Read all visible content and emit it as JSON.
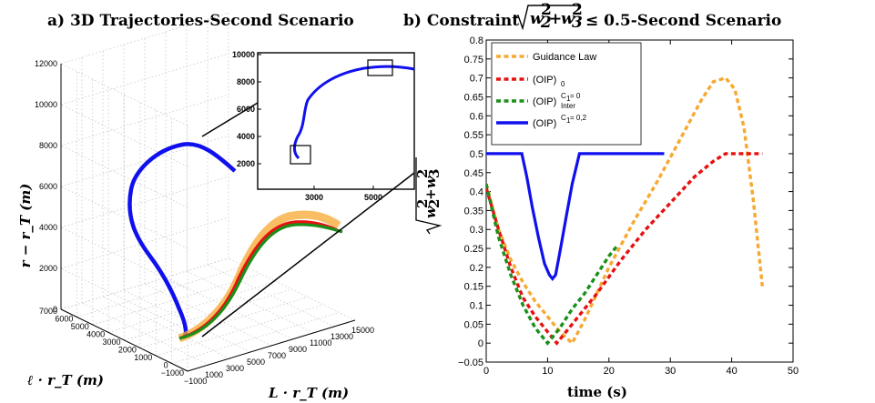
{
  "chart_data": [
    {
      "type": "line",
      "panel": "a",
      "title": "a) 3D Trajectories-Second Scenario",
      "xlabel": "L · r_T  (m)",
      "ylabel": "ℓ · r_T  (m)",
      "zlabel": "r − r_T  (m)",
      "x_ticks": [
        "−1000",
        "1000",
        "3000",
        "5000",
        "7000",
        "9000",
        "11000",
        "13000",
        "15000"
      ],
      "y_ticks": [
        "−1000",
        "0",
        "1000",
        "2000",
        "3000",
        "4000",
        "5000",
        "6000",
        "7000"
      ],
      "z_ticks": [
        "0",
        "2000",
        "4000",
        "6000",
        "8000",
        "10000",
        "12000"
      ],
      "inset": {
        "x_ticks": [
          "3000",
          "5000"
        ],
        "y_ticks": [
          "2000",
          "4000",
          "6000",
          "8000",
          "10000"
        ]
      },
      "grid": true,
      "colors": {
        "blue": "#1010ee",
        "orange": "#f7a830",
        "red": "#e81010",
        "green": "#1a8f1a"
      }
    },
    {
      "type": "line",
      "panel": "b",
      "title_left": "b) Constraint",
      "title_right": "≤ 0.5-Second Scenario",
      "xlabel": "time  (s)",
      "ylabel": "w₂² + w₃²",
      "xlim": [
        0,
        50
      ],
      "ylim": [
        -0.05,
        0.8
      ],
      "x_ticks": [
        "0",
        "10",
        "20",
        "30",
        "40",
        "50"
      ],
      "y_ticks": [
        "−0.05",
        "0",
        "0.05",
        "0.1",
        "0.15",
        "0.2",
        "0.25",
        "0.3",
        "0.35",
        "0.4",
        "0.45",
        "0.5",
        "0.55",
        "0.6",
        "0.65",
        "0.7",
        "0.75",
        "0.8"
      ],
      "legend_position": "top-left",
      "series": [
        {
          "name": "Guidance Law",
          "style": "dashed",
          "color": "#f7a830",
          "points": [
            [
              0,
              0.42
            ],
            [
              2,
              0.3
            ],
            [
              4,
              0.22
            ],
            [
              6,
              0.16
            ],
            [
              8,
              0.11
            ],
            [
              10,
              0.07
            ],
            [
              12,
              0.03
            ],
            [
              14,
              0.0
            ],
            [
              16,
              0.06
            ],
            [
              20,
              0.2
            ],
            [
              24,
              0.32
            ],
            [
              28,
              0.43
            ],
            [
              32,
              0.55
            ],
            [
              35,
              0.64
            ],
            [
              37,
              0.69
            ],
            [
              39,
              0.7
            ],
            [
              40.5,
              0.67
            ],
            [
              42,
              0.57
            ],
            [
              43.5,
              0.38
            ],
            [
              45,
              0.15
            ]
          ]
        },
        {
          "name": "(OIP)",
          "sub": "0",
          "style": "dashed",
          "color": "#e81010",
          "points": [
            [
              0,
              0.41
            ],
            [
              2,
              0.3
            ],
            [
              4,
              0.2
            ],
            [
              6,
              0.12
            ],
            [
              8,
              0.07
            ],
            [
              10,
              0.03
            ],
            [
              11.5,
              0.0
            ],
            [
              14,
              0.05
            ],
            [
              18,
              0.13
            ],
            [
              22,
              0.22
            ],
            [
              26,
              0.3
            ],
            [
              30,
              0.37
            ],
            [
              34,
              0.44
            ],
            [
              37,
              0.48
            ],
            [
              39,
              0.5
            ],
            [
              45,
              0.5
            ]
          ]
        },
        {
          "name": "(OIP)",
          "sub": "Inter",
          "sup": "C",
          "sup_sub": "1",
          "sup_rest": " = 0",
          "style": "dashed",
          "color": "#1a8f1a",
          "points": [
            [
              0,
              0.42
            ],
            [
              2,
              0.28
            ],
            [
              4,
              0.18
            ],
            [
              6,
              0.1
            ],
            [
              8,
              0.04
            ],
            [
              10,
              0.0
            ],
            [
              12,
              0.04
            ],
            [
              14,
              0.09
            ],
            [
              16,
              0.13
            ],
            [
              18,
              0.18
            ],
            [
              20,
              0.23
            ],
            [
              21.5,
              0.26
            ]
          ]
        },
        {
          "name": "(OIP)",
          "sup": "C",
          "sup_sub": "1",
          "sup_rest": " = 0,2",
          "style": "solid",
          "color": "#1010ee",
          "points": [
            [
              0,
              0.5
            ],
            [
              5.8,
              0.5
            ],
            [
              6.6,
              0.44
            ],
            [
              7.5,
              0.36
            ],
            [
              8.5,
              0.28
            ],
            [
              9.5,
              0.21
            ],
            [
              10.3,
              0.18
            ],
            [
              10.8,
              0.17
            ],
            [
              11.3,
              0.18
            ],
            [
              12,
              0.24
            ],
            [
              13,
              0.33
            ],
            [
              14,
              0.42
            ],
            [
              15.2,
              0.5
            ],
            [
              29,
              0.5
            ]
          ]
        }
      ]
    }
  ]
}
